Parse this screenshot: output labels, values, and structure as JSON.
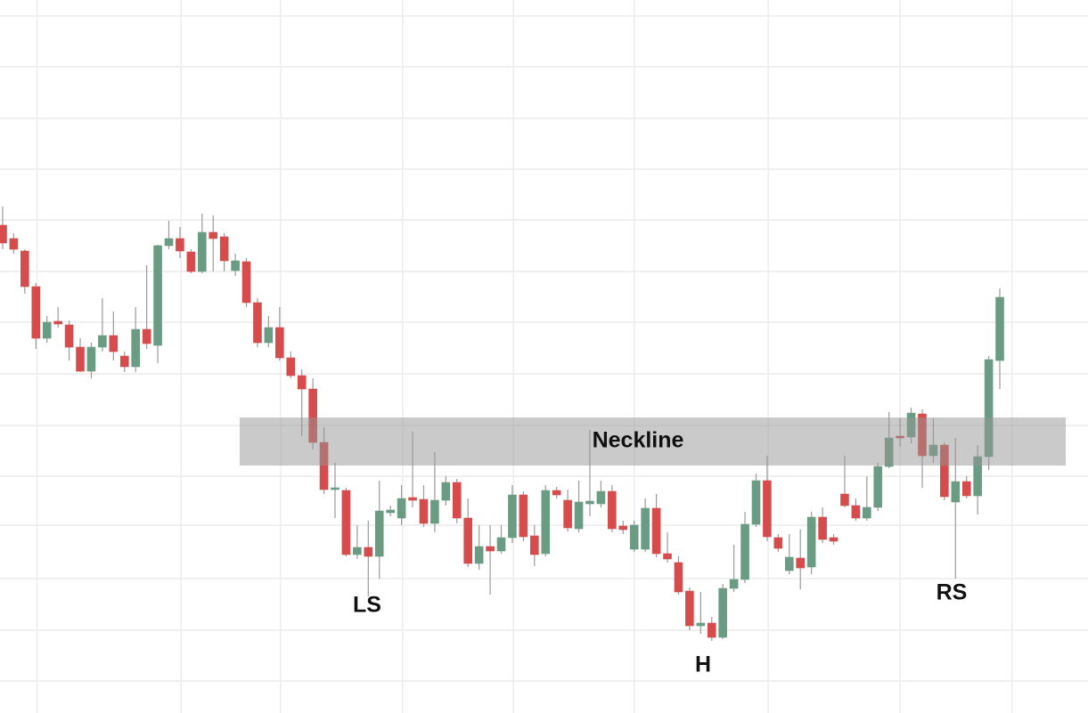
{
  "chart_data": {
    "type": "candlestick",
    "up_color": "#6a9c84",
    "down_color": "#d64b4b",
    "grid": true,
    "ylim": [
      0,
      800
    ],
    "yticks": [
      782,
      725,
      667,
      610,
      553,
      495,
      438,
      380,
      322,
      265,
      210,
      150,
      92,
      35
    ],
    "xlim": [
      -0.24,
      97.96
    ],
    "xticks": [
      3.1,
      16.1,
      25.1,
      36.1,
      46.1,
      57,
      69.1,
      81,
      91.1
    ],
    "open": [
      547,
      532,
      518,
      478,
      420,
      439,
      435,
      410,
      383,
      410,
      423,
      400,
      388,
      430,
      412,
      524,
      532,
      517,
      495,
      539,
      534,
      496,
      506,
      460,
      415,
      432,
      398,
      378,
      363,
      303,
      250,
      249,
      177,
      185,
      175,
      224,
      218,
      241,
      239,
      212,
      238,
      258,
      218,
      167,
      186,
      181,
      196,
      244,
      198,
      178,
      249,
      238,
      206,
      234,
      234,
      248,
      209,
      183,
      183,
      229,
      178,
      168,
      136,
      97,
      100,
      84,
      139,
      149,
      211,
      260,
      196,
      159,
      173,
      163,
      219,
      196,
      245,
      232,
      218,
      230,
      276,
      310,
      309,
      335,
      288,
      300,
      236,
      259,
      243,
      287,
      395
    ],
    "high": [
      568,
      538,
      520,
      482,
      445,
      455,
      440,
      420,
      415,
      465,
      450,
      405,
      455,
      502,
      525,
      552,
      545,
      520,
      560,
      558,
      538,
      515,
      510,
      465,
      445,
      455,
      405,
      385,
      375,
      320,
      280,
      252,
      210,
      215,
      260,
      232,
      255,
      315,
      255,
      292,
      265,
      262,
      240,
      210,
      210,
      210,
      255,
      248,
      210,
      255,
      253,
      250,
      260,
      317,
      260,
      255,
      215,
      215,
      240,
      245,
      202,
      175,
      140,
      135,
      107,
      144,
      188,
      225,
      268,
      288,
      200,
      200,
      205,
      225,
      230,
      200,
      288,
      240,
      265,
      280,
      337,
      330,
      342,
      340,
      330,
      303,
      308,
      265,
      300,
      400,
      476
    ],
    "low": [
      520,
      515,
      470,
      408,
      415,
      432,
      395,
      382,
      375,
      405,
      395,
      382,
      382,
      408,
      392,
      520,
      510,
      493,
      493,
      495,
      495,
      490,
      455,
      410,
      410,
      395,
      375,
      310,
      295,
      245,
      218,
      175,
      172,
      130,
      150,
      220,
      210,
      230,
      208,
      202,
      232,
      212,
      163,
      160,
      132,
      178,
      190,
      192,
      164,
      175,
      240,
      203,
      202,
      220,
      230,
      202,
      200,
      180,
      180,
      174,
      168,
      132,
      92,
      88,
      80,
      82,
      135,
      145,
      208,
      192,
      180,
      155,
      138,
      155,
      190,
      188,
      230,
      215,
      215,
      226,
      274,
      298,
      302,
      252,
      280,
      238,
      150,
      240,
      222,
      272,
      363
    ],
    "close": [
      527,
      520,
      478,
      420,
      438,
      436,
      410,
      383,
      410,
      423,
      405,
      388,
      430,
      414,
      524,
      532,
      518,
      495,
      539,
      532,
      507,
      507,
      460,
      415,
      432,
      398,
      378,
      363,
      303,
      250,
      252,
      177,
      185,
      175,
      226,
      227,
      240,
      238,
      212,
      238,
      258,
      218,
      167,
      186,
      181,
      196,
      244,
      197,
      177,
      249,
      244,
      207,
      236,
      237,
      248,
      206,
      205,
      210,
      229,
      178,
      172,
      135,
      97,
      100,
      84,
      139,
      149,
      211,
      260,
      197,
      184,
      174,
      162,
      219,
      194,
      192,
      232,
      218,
      230,
      276,
      308,
      308,
      336,
      288,
      300,
      242,
      259,
      243,
      287,
      396,
      466
    ],
    "zones": [
      {
        "label": "Neckline",
        "from": 277,
        "to": 331
      }
    ],
    "annotations": [
      {
        "text": "LS"
      },
      {
        "text": "H"
      },
      {
        "text": "RS"
      }
    ]
  }
}
